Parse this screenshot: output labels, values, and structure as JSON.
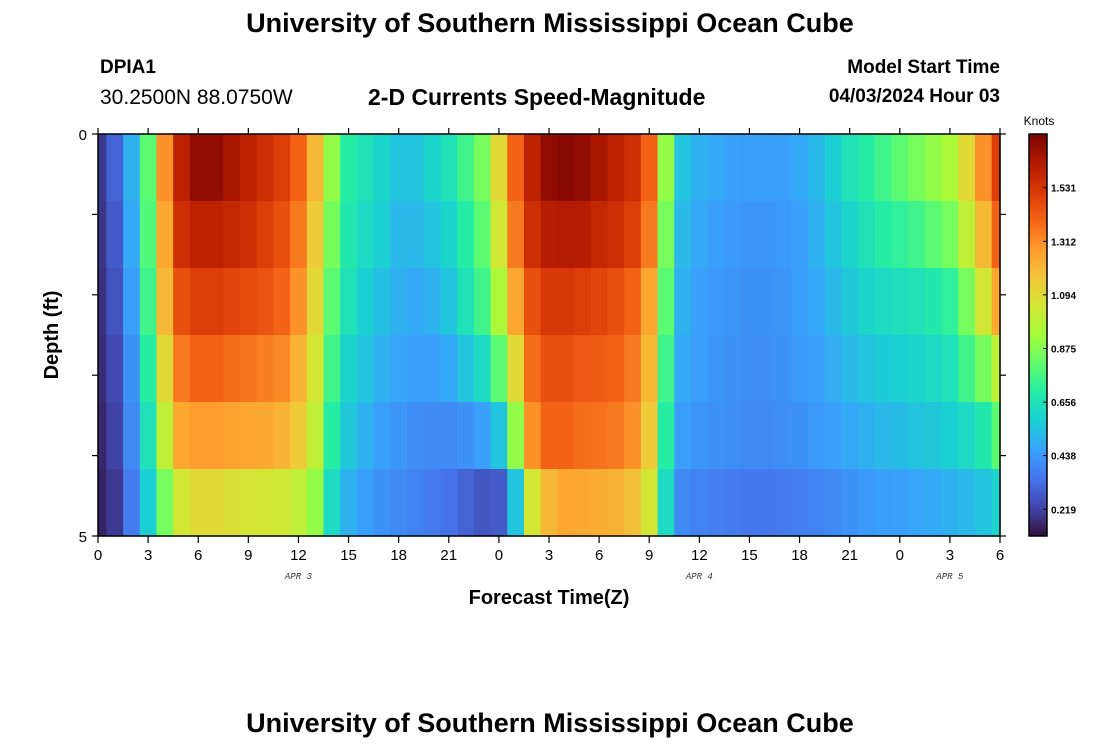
{
  "header": {
    "title": "University of Southern Mississippi Ocean Cube",
    "station": "DPIA1",
    "coords": "30.2500N  88.0750W",
    "subtitle": "2-D Currents Speed-Magnitude",
    "model_start_label": "Model Start Time",
    "model_start_value": "04/03/2024 Hour 03"
  },
  "footer": {
    "title": "University of Southern Mississippi Ocean Cube"
  },
  "chart_data": {
    "type": "heatmap",
    "xlabel": "Forecast Time(Z)",
    "ylabel": "Depth (ft)",
    "x_range": [
      0,
      54
    ],
    "y_range": [
      0,
      5
    ],
    "x_tick_labels": [
      "0",
      "3",
      "6",
      "9",
      "12",
      "15",
      "18",
      "21",
      "0",
      "3",
      "6",
      "9",
      "12",
      "15",
      "18",
      "21",
      "0",
      "3",
      "6"
    ],
    "y_tick_labels": [
      "0",
      "5"
    ],
    "date_labels": [
      {
        "label": "APR 3",
        "hour": 12
      },
      {
        "label": "APR 4",
        "hour": 36
      },
      {
        "label": "APR 5",
        "hour": 51
      }
    ],
    "colorbar": {
      "unit": "Knots",
      "range": [
        0.11,
        1.75
      ],
      "ticks": [
        "0.219",
        "0.438",
        "0.656",
        "0.875",
        "1.094",
        "1.312",
        "1.531"
      ],
      "tick_values": [
        0.219,
        0.438,
        0.656,
        0.875,
        1.094,
        1.312,
        1.531
      ],
      "colors": [
        "#30123b",
        "#4145ab",
        "#4675ed",
        "#39a2fc",
        "#1bcfd4",
        "#24eca6",
        "#61fc6c",
        "#a4fc3b",
        "#d1e834",
        "#f3c63a",
        "#fe9b2d",
        "#f36315",
        "#d93806",
        "#b11901",
        "#7a0402"
      ]
    },
    "hours": [
      0,
      1,
      2,
      3,
      4,
      5,
      6,
      7,
      8,
      9,
      10,
      11,
      12,
      13,
      14,
      15,
      16,
      17,
      18,
      19,
      20,
      21,
      22,
      23,
      24,
      25,
      26,
      27,
      28,
      29,
      30,
      31,
      32,
      33,
      34,
      35,
      36,
      37,
      38,
      39,
      40,
      41,
      42,
      43,
      44,
      45,
      46,
      47,
      48,
      49,
      50,
      51,
      52,
      53,
      54
    ],
    "depth_layers": [
      0,
      1,
      2,
      3,
      4,
      5
    ],
    "values": [
      [
        0.2,
        0.3,
        0.5,
        0.8,
        1.3,
        1.6,
        1.7,
        1.7,
        1.65,
        1.6,
        1.55,
        1.5,
        1.4,
        1.2,
        0.9,
        0.7,
        0.65,
        0.6,
        0.55,
        0.55,
        0.6,
        0.65,
        0.75,
        0.85,
        1.1,
        1.4,
        1.6,
        1.7,
        1.72,
        1.7,
        1.65,
        1.6,
        1.55,
        1.4,
        0.9,
        0.55,
        0.5,
        0.48,
        0.46,
        0.45,
        0.45,
        0.46,
        0.48,
        0.52,
        0.58,
        0.65,
        0.7,
        0.75,
        0.8,
        0.85,
        0.9,
        0.95,
        1.1,
        1.3,
        1.5
      ],
      [
        0.19,
        0.28,
        0.48,
        0.78,
        1.25,
        1.55,
        1.6,
        1.6,
        1.58,
        1.55,
        1.5,
        1.45,
        1.35,
        1.15,
        0.85,
        0.68,
        0.62,
        0.58,
        0.52,
        0.52,
        0.55,
        0.6,
        0.7,
        0.8,
        1.05,
        1.35,
        1.55,
        1.62,
        1.63,
        1.62,
        1.58,
        1.55,
        1.5,
        1.35,
        0.85,
        0.52,
        0.48,
        0.45,
        0.44,
        0.43,
        0.43,
        0.44,
        0.46,
        0.5,
        0.55,
        0.6,
        0.65,
        0.7,
        0.72,
        0.75,
        0.8,
        0.85,
        1.0,
        1.2,
        1.4
      ],
      [
        0.18,
        0.26,
        0.45,
        0.75,
        1.2,
        1.45,
        1.5,
        1.5,
        1.48,
        1.46,
        1.44,
        1.4,
        1.3,
        1.1,
        0.8,
        0.65,
        0.58,
        0.54,
        0.5,
        0.48,
        0.5,
        0.55,
        0.65,
        0.75,
        0.95,
        1.25,
        1.45,
        1.52,
        1.52,
        1.5,
        1.48,
        1.45,
        1.4,
        1.25,
        0.8,
        0.5,
        0.46,
        0.44,
        0.43,
        0.42,
        0.42,
        0.43,
        0.45,
        0.48,
        0.52,
        0.56,
        0.6,
        0.62,
        0.64,
        0.65,
        0.68,
        0.72,
        0.85,
        1.05,
        1.25
      ],
      [
        0.17,
        0.24,
        0.42,
        0.7,
        1.1,
        1.35,
        1.4,
        1.4,
        1.38,
        1.36,
        1.34,
        1.32,
        1.22,
        1.05,
        0.75,
        0.6,
        0.55,
        0.5,
        0.47,
        0.45,
        0.46,
        0.48,
        0.55,
        0.62,
        0.8,
        1.1,
        1.38,
        1.45,
        1.45,
        1.43,
        1.42,
        1.4,
        1.35,
        1.2,
        0.75,
        0.48,
        0.45,
        0.43,
        0.42,
        0.41,
        0.41,
        0.42,
        0.44,
        0.46,
        0.49,
        0.52,
        0.55,
        0.57,
        0.58,
        0.6,
        0.62,
        0.65,
        0.75,
        0.85,
        1.0
      ],
      [
        0.16,
        0.22,
        0.4,
        0.65,
        1.0,
        1.25,
        1.28,
        1.28,
        1.26,
        1.25,
        1.24,
        1.22,
        1.15,
        1.0,
        0.7,
        0.56,
        0.5,
        0.46,
        0.43,
        0.41,
        0.4,
        0.4,
        0.42,
        0.45,
        0.55,
        0.9,
        1.3,
        1.4,
        1.4,
        1.38,
        1.37,
        1.35,
        1.3,
        1.15,
        0.7,
        0.45,
        0.43,
        0.42,
        0.41,
        0.4,
        0.4,
        0.41,
        0.42,
        0.44,
        0.46,
        0.48,
        0.5,
        0.52,
        0.53,
        0.55,
        0.56,
        0.58,
        0.62,
        0.68,
        0.8
      ],
      [
        0.15,
        0.2,
        0.36,
        0.58,
        0.85,
        1.05,
        1.1,
        1.1,
        1.08,
        1.06,
        1.05,
        1.04,
        1.0,
        0.9,
        0.62,
        0.5,
        0.45,
        0.42,
        0.4,
        0.38,
        0.36,
        0.34,
        0.3,
        0.27,
        0.28,
        0.55,
        1.05,
        1.2,
        1.25,
        1.24,
        1.23,
        1.22,
        1.18,
        1.05,
        0.62,
        0.4,
        0.38,
        0.37,
        0.36,
        0.35,
        0.35,
        0.36,
        0.37,
        0.38,
        0.4,
        0.42,
        0.44,
        0.45,
        0.46,
        0.47,
        0.48,
        0.5,
        0.52,
        0.55,
        0.6
      ]
    ]
  }
}
